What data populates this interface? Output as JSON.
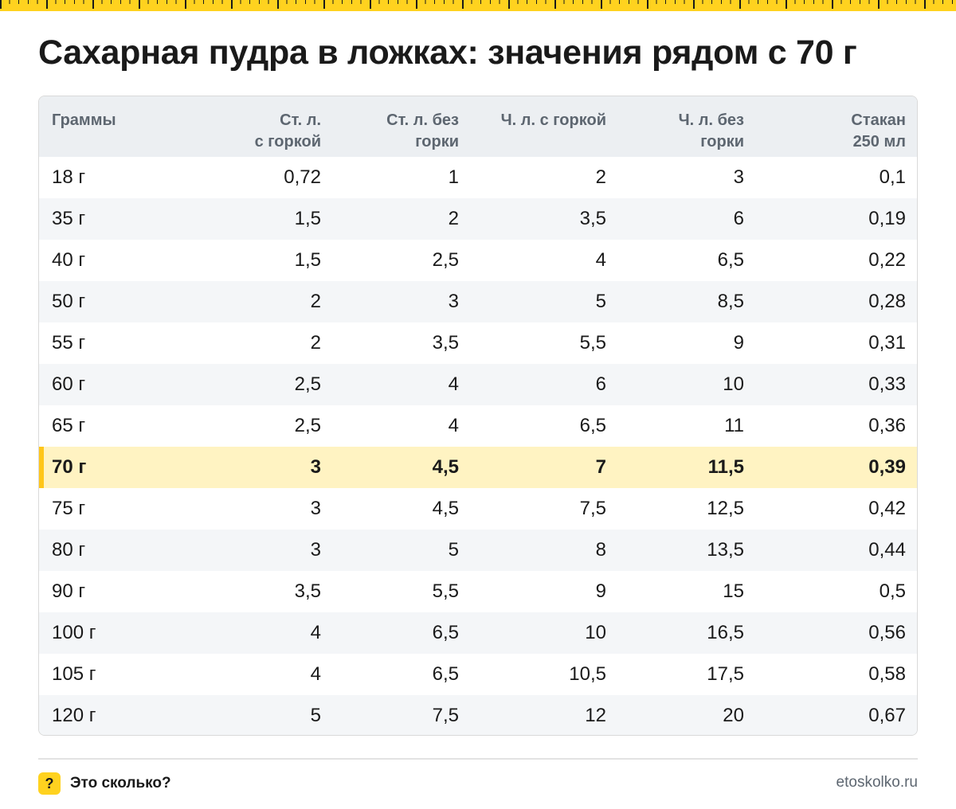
{
  "title": "Сахарная пудра в ложках: значения рядом с 70 г",
  "table": {
    "headers": [
      [
        "Граммы"
      ],
      [
        "Ст. л.",
        "с горкой"
      ],
      [
        "Ст. л. без",
        "горки"
      ],
      [
        "Ч. л. с горкой"
      ],
      [
        "Ч. л. без",
        "горки"
      ],
      [
        "Стакан",
        "250 мл"
      ]
    ],
    "highlight_row": 7,
    "rows": [
      [
        "18 г",
        "0,72",
        "1",
        "2",
        "3",
        "0,1"
      ],
      [
        "35 г",
        "1,5",
        "2",
        "3,5",
        "6",
        "0,19"
      ],
      [
        "40 г",
        "1,5",
        "2,5",
        "4",
        "6,5",
        "0,22"
      ],
      [
        "50 г",
        "2",
        "3",
        "5",
        "8,5",
        "0,28"
      ],
      [
        "55 г",
        "2",
        "3,5",
        "5,5",
        "9",
        "0,31"
      ],
      [
        "60 г",
        "2,5",
        "4",
        "6",
        "10",
        "0,33"
      ],
      [
        "65 г",
        "2,5",
        "4",
        "6,5",
        "11",
        "0,36"
      ],
      [
        "70 г",
        "3",
        "4,5",
        "7",
        "11,5",
        "0,39"
      ],
      [
        "75 г",
        "3",
        "4,5",
        "7,5",
        "12,5",
        "0,42"
      ],
      [
        "80 г",
        "3",
        "5",
        "8",
        "13,5",
        "0,44"
      ],
      [
        "90 г",
        "3,5",
        "5,5",
        "9",
        "15",
        "0,5"
      ],
      [
        "100 г",
        "4",
        "6,5",
        "10",
        "16,5",
        "0,56"
      ],
      [
        "105 г",
        "4",
        "6,5",
        "10,5",
        "17,5",
        "0,58"
      ],
      [
        "120 г",
        "5",
        "7,5",
        "12",
        "20",
        "0,67"
      ]
    ]
  },
  "footer": {
    "badge": "?",
    "brand": "Это сколько?",
    "url": "etoskolko.ru"
  },
  "colors": {
    "accent": "#ffd21f",
    "highlight_row": "#fff3c2",
    "header_bg": "#eceff2",
    "stripe": "#f4f6f8"
  }
}
